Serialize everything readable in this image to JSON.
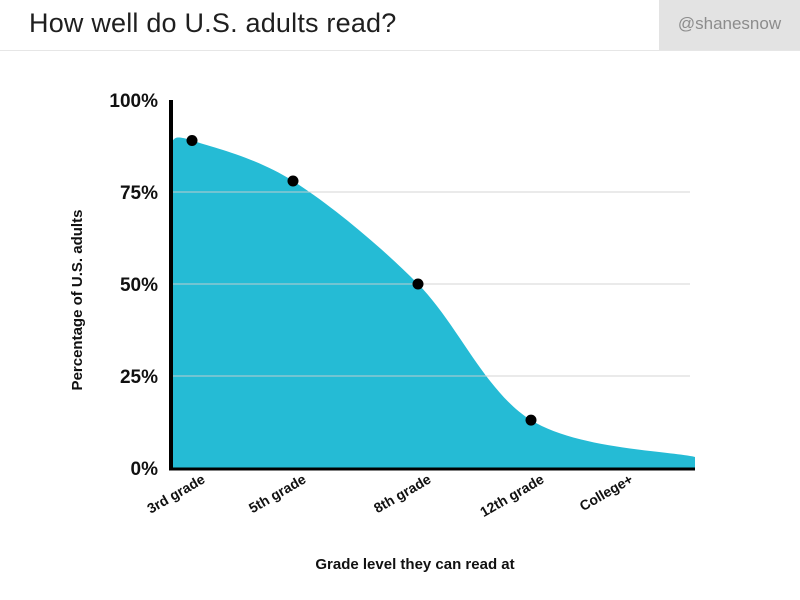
{
  "header": {
    "title": "How well do U.S. adults read?",
    "handle": "@shanesnow"
  },
  "chart_data": {
    "type": "area",
    "title": "How well do U.S. adults read?",
    "xlabel": "Grade level they can read at",
    "ylabel": "Percentage of U.S. adults",
    "categories": [
      "3rd grade",
      "5th grade",
      "8th grade",
      "12th grade",
      "College+"
    ],
    "series": [
      {
        "values": [
          89,
          78,
          50,
          13,
          3
        ]
      }
    ],
    "points": [
      {
        "category": "3rd grade",
        "value": 89
      },
      {
        "category": "5th grade",
        "value": 78
      },
      {
        "category": "8th grade",
        "value": 50
      },
      {
        "category": "12th grade",
        "value": 13
      }
    ],
    "y_ticks": [
      "0%",
      "25%",
      "50%",
      "75%",
      "100%"
    ],
    "y_tick_values": [
      0,
      25,
      50,
      75,
      100
    ],
    "ylim": [
      0,
      100
    ],
    "grid": true,
    "legend": "none",
    "colors": {
      "area": "#25bbd5",
      "point": "#000000",
      "grid": "#cfcfcf",
      "axis": "#000000"
    }
  }
}
